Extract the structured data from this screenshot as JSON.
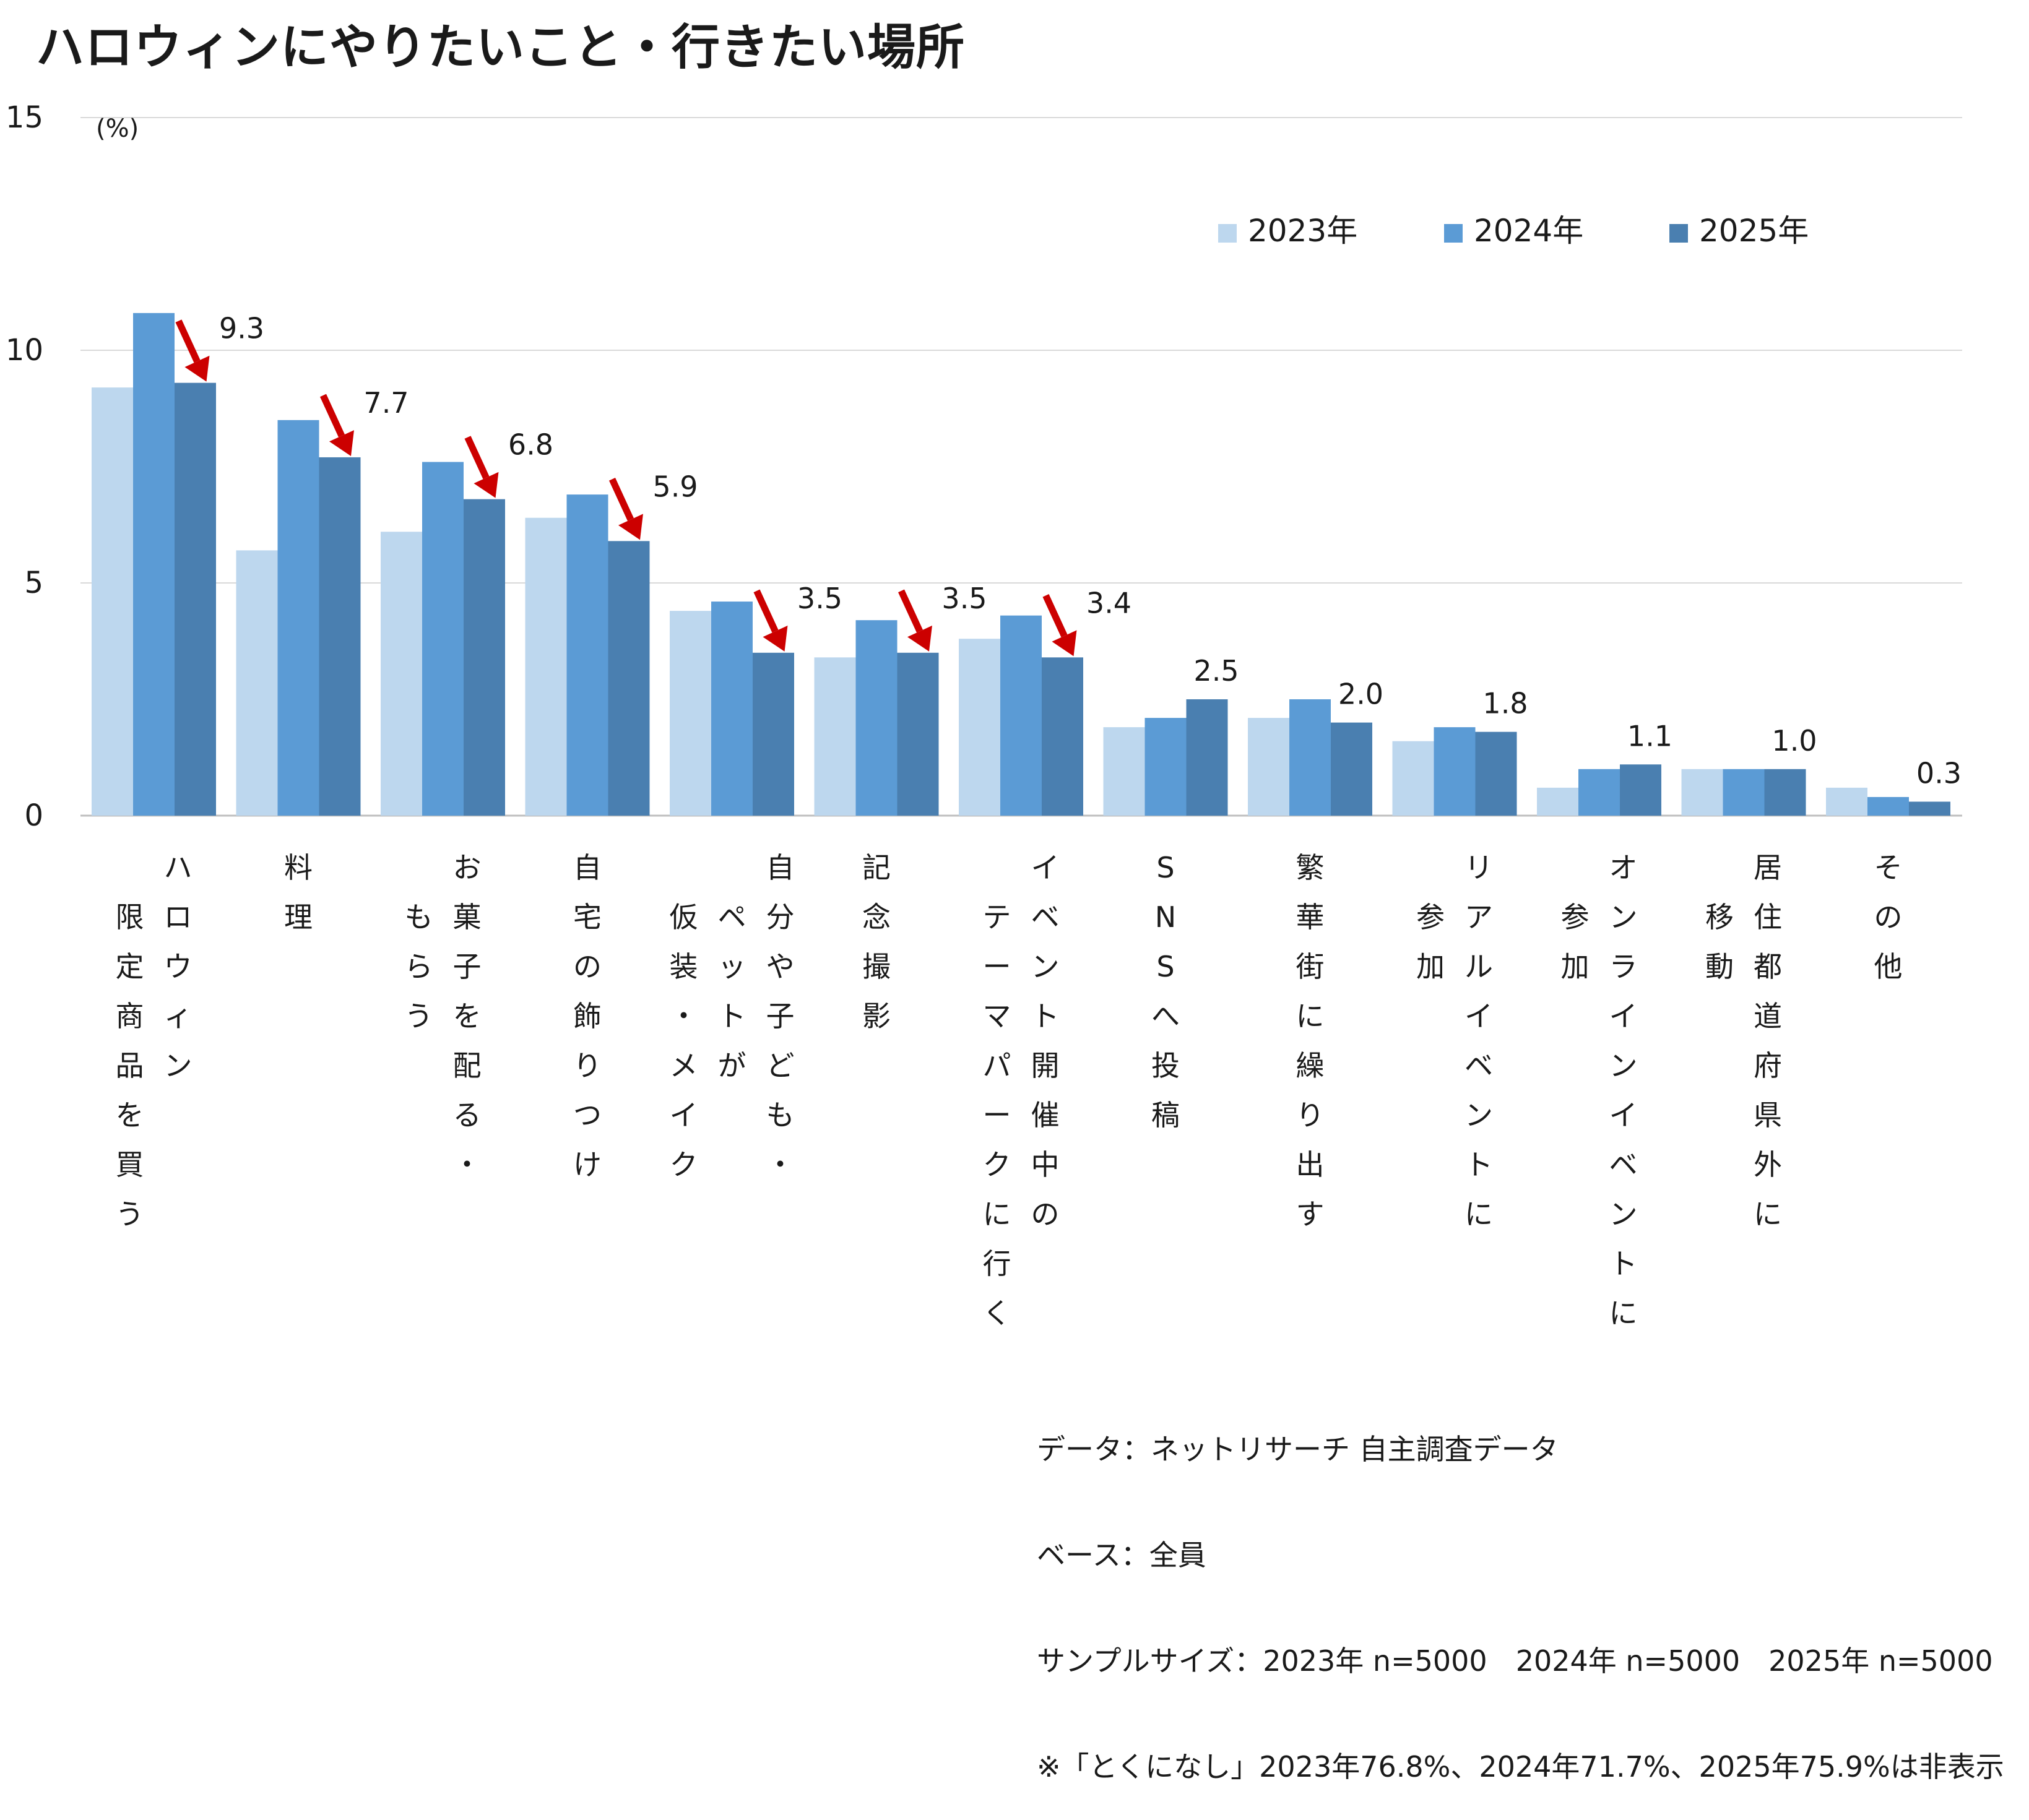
{
  "title": "ハロウィンにやりたいこと・行きたい場所",
  "colors": {
    "2023": "#bdd7ee",
    "2024": "#5b9bd5",
    "2025": "#4a7fb0",
    "arrow": "#cc0000",
    "grid": "#d9d9d9",
    "axis": "#bfbfbf"
  },
  "chart_data": {
    "type": "bar",
    "unit_label": "(%)",
    "ylim": [
      0,
      15
    ],
    "yticks": [
      0,
      5,
      10,
      15
    ],
    "grid": true,
    "legend_position": "top-right",
    "categories": [
      [
        "ハロウィン",
        "限定商品を買う"
      ],
      [
        "料理"
      ],
      [
        "お菓子を配る・",
        "もらう"
      ],
      [
        "自宅の飾りつけ"
      ],
      [
        "自分や子ども・",
        "ペットが",
        "仮装・メイク"
      ],
      [
        "記念撮影"
      ],
      [
        "イベント開催中の",
        "テーマパークに行く"
      ],
      [
        "SNSへ投稿"
      ],
      [
        "繁華街に繰り出す"
      ],
      [
        "リアルイベントに",
        "参加"
      ],
      [
        "オンラインイベントに",
        "参加"
      ],
      [
        "居住都道府県外に",
        "移動"
      ],
      [
        "その他"
      ]
    ],
    "series": [
      {
        "name": "2023年",
        "values": [
          9.2,
          5.7,
          6.1,
          6.4,
          4.4,
          3.4,
          3.8,
          1.9,
          2.1,
          1.6,
          0.6,
          1.0,
          0.6
        ]
      },
      {
        "name": "2024年",
        "values": [
          10.8,
          8.5,
          7.6,
          6.9,
          4.6,
          4.2,
          4.3,
          2.1,
          2.5,
          1.9,
          1.0,
          1.0,
          0.4
        ]
      },
      {
        "name": "2025年",
        "values": [
          9.3,
          7.7,
          6.8,
          5.9,
          3.5,
          3.5,
          3.4,
          2.5,
          2.0,
          1.8,
          1.1,
          1.0,
          0.3
        ]
      }
    ],
    "value_labels": [
      "9.3",
      "7.7",
      "6.8",
      "5.9",
      "3.5",
      "3.5",
      "3.4",
      "2.5",
      "2.0",
      "1.8",
      "1.1",
      "1.0",
      "0.3"
    ],
    "decline_arrows": [
      true,
      true,
      true,
      true,
      true,
      true,
      true,
      false,
      false,
      false,
      false,
      false,
      false
    ]
  },
  "notes": [
    "データ：ネットリサーチ 自主調査データ",
    "ベース：全員",
    "サンプルサイズ：2023年 n=5000　2024年 n=5000　2025年 n=5000",
    "※「とくになし」2023年76.8%、2024年71.7%、2025年75.9%は非表示"
  ]
}
